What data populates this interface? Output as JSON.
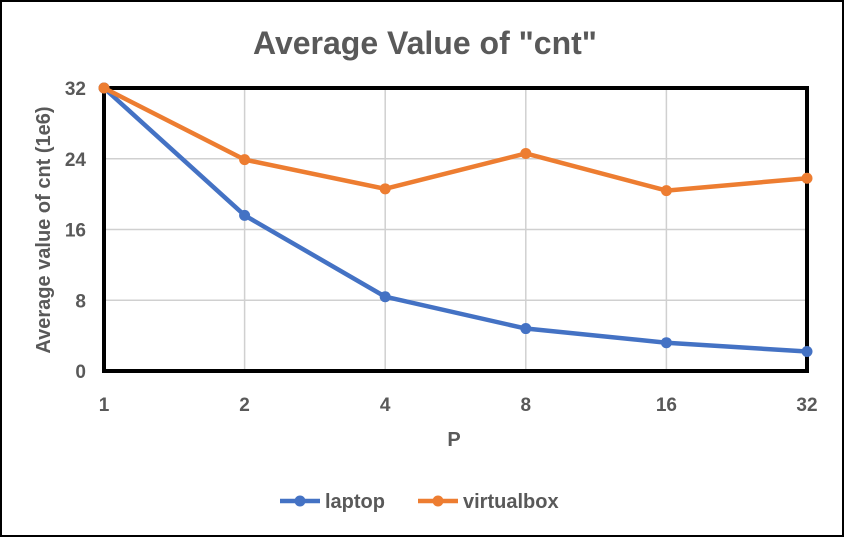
{
  "chart_data": {
    "type": "line",
    "title": "Average Value of \"cnt\"",
    "xlabel": "P",
    "ylabel": "Average value of cnt (1e6)",
    "categories": [
      "1",
      "2",
      "4",
      "8",
      "16",
      "32"
    ],
    "ylim": [
      0,
      32
    ],
    "yticks": [
      "0",
      "8",
      "16",
      "24",
      "32"
    ],
    "grid": true,
    "legend_position": "bottom",
    "series": [
      {
        "name": "laptop",
        "color": "#4472c4",
        "values": [
          32,
          17.6,
          8.4,
          4.8,
          3.2,
          2.2
        ]
      },
      {
        "name": "virtualbox",
        "color": "#ed7d31",
        "values": [
          32,
          23.9,
          20.6,
          24.6,
          20.4,
          21.8
        ]
      }
    ]
  }
}
